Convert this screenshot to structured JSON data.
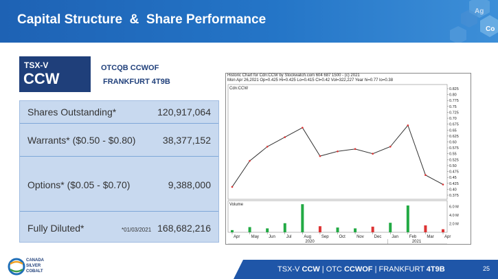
{
  "header": {
    "title": "Capital Structure  &  Share Performance",
    "badges": [
      "Ag",
      "Co"
    ]
  },
  "ticker": {
    "exchange": "TSX-V",
    "symbol": "CCW",
    "otc": "OTCQB CCWOF",
    "frankfurt": "FRANKFURT 4T9B"
  },
  "stats": [
    {
      "label": "Shares Outstanding*",
      "value": "120,917,064",
      "date": ""
    },
    {
      "label": "Warrants* ($0.50 - $0.80)",
      "value": "38,377,152",
      "date": ""
    },
    {
      "label": "Options*  ($0.05 - $0.70)",
      "value": "9,388,000",
      "date": ""
    },
    {
      "label": "Fully Diluted*",
      "value": "168,682,216",
      "date": "*01/03/2021"
    }
  ],
  "chart": {
    "header_line1": "Historic Chart for Cdn:CCW by Stockwatch.com 604 687 1500 - (c) 2021",
    "header_line2": "Mon Apr 26,2021   Op=0.425  Hi=0.425  Lo=0.415  Cl=0.42  Vol=322,227  Year hi=0.77  lo=0.38",
    "price_label": "Cdn:CCW",
    "volume_label": "Volume",
    "price_ticks": [
      "0.825",
      "0.80",
      "0.775",
      "0.75",
      "0.725",
      "0.70",
      "0.675",
      "0.65",
      "0.625",
      "0.60",
      "0.575",
      "0.55",
      "0.525",
      "0.50",
      "0.475",
      "0.45",
      "0.425",
      "0.40",
      "0.375"
    ],
    "volume_ticks": [
      "6.0 M",
      "4.0 M",
      "2.0 M"
    ],
    "months": [
      "Apr",
      "May",
      "Jun",
      "Jul",
      "Aug",
      "Sep",
      "Oct",
      "Nov",
      "Dec",
      "Jan",
      "Feb",
      "Mar",
      "Apr"
    ],
    "years": [
      "2020",
      "2021"
    ]
  },
  "chart_data": {
    "type": "line",
    "title": "Historic Chart for Cdn:CCW by Stockwatch.com 604 687 1500 - (c) 2021",
    "xlabel": "",
    "ylabel": "",
    "ylim": [
      0.375,
      0.825
    ],
    "x": [
      "Apr",
      "May",
      "Jun",
      "Jul",
      "Aug",
      "Sep",
      "Oct",
      "Nov",
      "Dec",
      "Jan",
      "Feb",
      "Mar",
      "Apr"
    ],
    "series": [
      {
        "name": "Cdn:CCW",
        "values": [
          0.41,
          0.52,
          0.58,
          0.62,
          0.66,
          0.54,
          0.56,
          0.57,
          0.55,
          0.58,
          0.67,
          0.46,
          0.42
        ]
      }
    ],
    "volume_series": [
      0.5,
      1.2,
      0.9,
      2.1,
      6.5,
      1.4,
      1.1,
      0.9,
      1.3,
      2.2,
      6.2,
      1.6,
      0.7
    ],
    "volume_ylim_millions": [
      0,
      7
    ]
  },
  "footer": {
    "logo_text": [
      "CANADA",
      "SILVER",
      "COBALT"
    ],
    "ticker_parts": [
      "TSX-V ",
      "CCW",
      " | OTC ",
      "CCWOF",
      " | FRANKFURT ",
      "4T9B"
    ],
    "page": "25"
  },
  "colors": {
    "header_blue": "#2475c7",
    "navy": "#1f3f7a",
    "table_fill": "#c8d9ef",
    "up_bar": "#22aa44",
    "down_bar": "#dd3333"
  }
}
